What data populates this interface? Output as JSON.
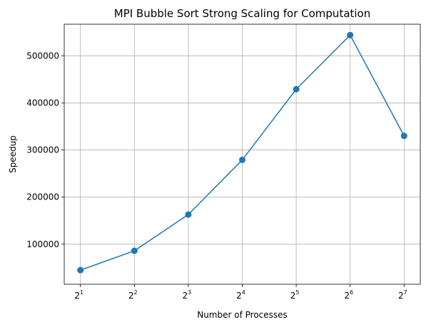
{
  "chart_data": {
    "type": "line",
    "title": "MPI Bubble Sort Strong Scaling for Computation",
    "xlabel": "Number of Processes",
    "ylabel": "Speedup",
    "x_scale": "log2",
    "grid": true,
    "x": [
      2,
      4,
      8,
      16,
      32,
      64,
      128
    ],
    "x_tick_labels": [
      {
        "base": "2",
        "exp": "1"
      },
      {
        "base": "2",
        "exp": "2"
      },
      {
        "base": "2",
        "exp": "3"
      },
      {
        "base": "2",
        "exp": "4"
      },
      {
        "base": "2",
        "exp": "5"
      },
      {
        "base": "2",
        "exp": "6"
      },
      {
        "base": "2",
        "exp": "7"
      }
    ],
    "y_ticks": [
      100000,
      200000,
      300000,
      400000,
      500000
    ],
    "y_tick_labels": [
      "100000",
      "200000",
      "300000",
      "400000",
      "500000"
    ],
    "ylim": [
      15000,
      567000
    ],
    "series": [
      {
        "values": [
          45000,
          86000,
          163000,
          279000,
          429000,
          544000,
          330000
        ],
        "color": "#1f77b4",
        "marker": "circle"
      }
    ]
  }
}
